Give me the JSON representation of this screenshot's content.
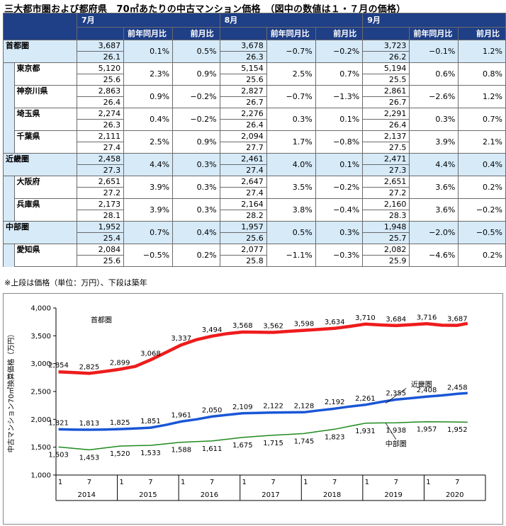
{
  "title": "三大都市圏および都府県　70㎡あたりの中古マンション価格　（図中の数値は１・７月の価格）",
  "table": {
    "months": [
      "7月",
      "8月",
      "9月"
    ],
    "col_yoy": "前年同月比",
    "col_mom": "前月比",
    "rows": [
      {
        "name": "首都圏",
        "kind": "region",
        "months": [
          [
            "3,687",
            "26.1",
            "0.1%",
            "0.5%"
          ],
          [
            "3,678",
            "26.3",
            "−0.7%",
            "−0.2%"
          ],
          [
            "3,723",
            "26.2",
            "−0.1%",
            "1.2%"
          ]
        ]
      },
      {
        "name": "東京都",
        "kind": "pref",
        "months": [
          [
            "5,120",
            "25.6",
            "2.3%",
            "0.9%"
          ],
          [
            "5,154",
            "25.6",
            "2.5%",
            "0.7%"
          ],
          [
            "5,194",
            "25.5",
            "0.6%",
            "0.8%"
          ]
        ]
      },
      {
        "name": "神奈川県",
        "kind": "pref",
        "months": [
          [
            "2,863",
            "26.4",
            "0.9%",
            "−0.2%"
          ],
          [
            "2,827",
            "26.7",
            "−0.7%",
            "−1.3%"
          ],
          [
            "2,861",
            "26.7",
            "−2.6%",
            "1.2%"
          ]
        ]
      },
      {
        "name": "埼玉県",
        "kind": "pref",
        "months": [
          [
            "2,274",
            "26.3",
            "0.4%",
            "−0.2%"
          ],
          [
            "2,276",
            "26.4",
            "0.3%",
            "0.1%"
          ],
          [
            "2,291",
            "26.4",
            "0.3%",
            "0.7%"
          ]
        ]
      },
      {
        "name": "千葉県",
        "kind": "pref",
        "months": [
          [
            "2,111",
            "27.4",
            "2.5%",
            "0.9%"
          ],
          [
            "2,094",
            "27.7",
            "1.7%",
            "−0.8%"
          ],
          [
            "2,137",
            "27.5",
            "3.9%",
            "2.1%"
          ]
        ]
      },
      {
        "name": "近畿圏",
        "kind": "region",
        "months": [
          [
            "2,458",
            "27.3",
            "4.4%",
            "0.3%"
          ],
          [
            "2,461",
            "27.4",
            "4.0%",
            "0.1%"
          ],
          [
            "2,471",
            "27.3",
            "4.4%",
            "0.4%"
          ]
        ]
      },
      {
        "name": "大阪府",
        "kind": "pref",
        "months": [
          [
            "2,651",
            "27.2",
            "3.9%",
            "0.3%"
          ],
          [
            "2,647",
            "27.4",
            "3.5%",
            "−0.2%"
          ],
          [
            "2,651",
            "27.2",
            "3.6%",
            "0.2%"
          ]
        ]
      },
      {
        "name": "兵庫県",
        "kind": "pref",
        "months": [
          [
            "2,173",
            "28.1",
            "3.9%",
            "0.3%"
          ],
          [
            "2,164",
            "28.2",
            "3.8%",
            "−0.4%"
          ],
          [
            "2,160",
            "28.3",
            "3.6%",
            "−0.2%"
          ]
        ]
      },
      {
        "name": "中部圏",
        "kind": "region",
        "months": [
          [
            "1,952",
            "25.4",
            "0.7%",
            "0.4%"
          ],
          [
            "1,957",
            "25.6",
            "0.5%",
            "0.3%"
          ],
          [
            "1,948",
            "25.7",
            "−2.0%",
            "−0.5%"
          ]
        ]
      },
      {
        "name": "愛知県",
        "kind": "pref",
        "months": [
          [
            "2,084",
            "25.6",
            "−0.5%",
            "0.2%"
          ],
          [
            "2,077",
            "25.8",
            "−1.1%",
            "−0.3%"
          ],
          [
            "2,082",
            "25.9",
            "−4.6%",
            "0.2%"
          ]
        ]
      }
    ]
  },
  "note": "※上段は価格（単位：万円）、下段は築年",
  "chart_data": {
    "type": "line",
    "ylabel": "中古マンション70㎡換算価格（万円）",
    "ylim": [
      1000,
      4000
    ],
    "yticks": [
      1000,
      1500,
      2000,
      2500,
      3000,
      3500,
      4000
    ],
    "ytick_labels": [
      "1,000",
      "1,500",
      "2,000",
      "2,500",
      "3,000",
      "3,500",
      "4,000"
    ],
    "x_month_labels": [
      "1",
      "7"
    ],
    "years": [
      "2014",
      "2015",
      "2016",
      "2017",
      "2018",
      "2019",
      "2020"
    ],
    "grid": false,
    "series": [
      {
        "name": "首都圏",
        "color": "#ee1c1c",
        "points": [
          [
            0,
            2854
          ],
          [
            3,
            2840
          ],
          [
            6,
            2825
          ],
          [
            9,
            2860
          ],
          [
            12,
            2899
          ],
          [
            15,
            2950
          ],
          [
            18,
            3068
          ],
          [
            21,
            3200
          ],
          [
            24,
            3337
          ],
          [
            27,
            3430
          ],
          [
            30,
            3494
          ],
          [
            33,
            3540
          ],
          [
            36,
            3568
          ],
          [
            39,
            3565
          ],
          [
            42,
            3562
          ],
          [
            45,
            3580
          ],
          [
            48,
            3598
          ],
          [
            51,
            3615
          ],
          [
            54,
            3634
          ],
          [
            57,
            3670
          ],
          [
            60,
            3710
          ],
          [
            63,
            3695
          ],
          [
            66,
            3684
          ],
          [
            69,
            3700
          ],
          [
            72,
            3716
          ],
          [
            75,
            3690
          ],
          [
            78,
            3687
          ],
          [
            80,
            3723
          ]
        ],
        "labels": [
          [
            0,
            "2,854"
          ],
          [
            6,
            "2,825"
          ],
          [
            12,
            "2,899"
          ],
          [
            18,
            "3,068"
          ],
          [
            24,
            "3,337"
          ],
          [
            30,
            "3,494"
          ],
          [
            36,
            "3,568"
          ],
          [
            42,
            "3,562"
          ],
          [
            48,
            "3,598"
          ],
          [
            54,
            "3,634"
          ],
          [
            60,
            "3,710"
          ],
          [
            66,
            "3,684"
          ],
          [
            72,
            "3,716"
          ],
          [
            78,
            "3,687"
          ]
        ]
      },
      {
        "name": "近畿圏",
        "color": "#1a56d6",
        "points": [
          [
            0,
            1821
          ],
          [
            3,
            1815
          ],
          [
            6,
            1813
          ],
          [
            9,
            1818
          ],
          [
            12,
            1825
          ],
          [
            15,
            1835
          ],
          [
            18,
            1851
          ],
          [
            21,
            1900
          ],
          [
            24,
            1961
          ],
          [
            27,
            2000
          ],
          [
            30,
            2050
          ],
          [
            33,
            2080
          ],
          [
            36,
            2109
          ],
          [
            39,
            2115
          ],
          [
            42,
            2122
          ],
          [
            45,
            2125
          ],
          [
            48,
            2128
          ],
          [
            51,
            2160
          ],
          [
            54,
            2192
          ],
          [
            57,
            2230
          ],
          [
            60,
            2261
          ],
          [
            63,
            2310
          ],
          [
            66,
            2355
          ],
          [
            69,
            2380
          ],
          [
            72,
            2408
          ],
          [
            75,
            2430
          ],
          [
            78,
            2458
          ],
          [
            80,
            2471
          ]
        ],
        "labels": [
          [
            0,
            "1,821"
          ],
          [
            6,
            "1,813"
          ],
          [
            12,
            "1,825"
          ],
          [
            18,
            "1,851"
          ],
          [
            24,
            "1,961"
          ],
          [
            30,
            "2,050"
          ],
          [
            36,
            "2,109"
          ],
          [
            42,
            "2,122"
          ],
          [
            48,
            "2,128"
          ],
          [
            54,
            "2,192"
          ],
          [
            60,
            "2,261"
          ],
          [
            66,
            "2,355"
          ],
          [
            72,
            "2,408"
          ],
          [
            78,
            "2,458"
          ]
        ]
      },
      {
        "name": "中部圏",
        "color": "#1e8a1e",
        "points": [
          [
            0,
            1503
          ],
          [
            3,
            1478
          ],
          [
            6,
            1453
          ],
          [
            9,
            1485
          ],
          [
            12,
            1520
          ],
          [
            15,
            1527
          ],
          [
            18,
            1533
          ],
          [
            21,
            1560
          ],
          [
            24,
            1588
          ],
          [
            27,
            1600
          ],
          [
            30,
            1611
          ],
          [
            33,
            1643
          ],
          [
            36,
            1675
          ],
          [
            39,
            1695
          ],
          [
            42,
            1715
          ],
          [
            45,
            1730
          ],
          [
            48,
            1745
          ],
          [
            51,
            1784
          ],
          [
            54,
            1823
          ],
          [
            57,
            1877
          ],
          [
            60,
            1931
          ],
          [
            63,
            1935
          ],
          [
            66,
            1938
          ],
          [
            69,
            1948
          ],
          [
            72,
            1957
          ],
          [
            75,
            1955
          ],
          [
            78,
            1952
          ],
          [
            80,
            1948
          ]
        ],
        "labels": [
          [
            0,
            "1,503"
          ],
          [
            6,
            "1,453"
          ],
          [
            12,
            "1,520"
          ],
          [
            18,
            "1,533"
          ],
          [
            24,
            "1,588"
          ],
          [
            30,
            "1,611"
          ],
          [
            36,
            "1,675"
          ],
          [
            42,
            "1,715"
          ],
          [
            48,
            "1,745"
          ],
          [
            54,
            "1,823"
          ],
          [
            60,
            "1,931"
          ],
          [
            66,
            "1,938"
          ],
          [
            72,
            "1,957"
          ],
          [
            78,
            "1,952"
          ]
        ]
      }
    ]
  }
}
